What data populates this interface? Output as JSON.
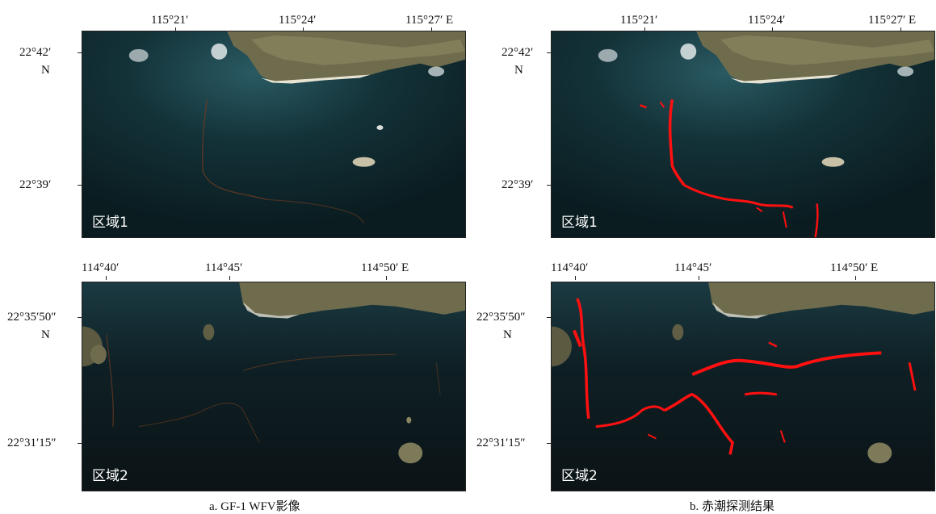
{
  "panel_a": {
    "caption": "a. GF-1 WFV影像",
    "top": {
      "x_ticks": [
        "115°21′",
        "115°24′",
        "115°27′ E"
      ],
      "y_ticks": [
        "22°42′",
        "N",
        "22°39′"
      ],
      "region": "区域1"
    },
    "bottom": {
      "x_ticks": [
        "114°40′",
        "114°45′",
        "114°50′ E"
      ],
      "y_ticks": [
        "22°35′50″",
        "N",
        "22°31′15″"
      ],
      "region": "区域2"
    }
  },
  "panel_b": {
    "caption": "b. 赤潮探测结果",
    "top": {
      "x_ticks": [
        "115°21′",
        "115°24′",
        "115°27′ E"
      ],
      "y_ticks": [
        "22°42′",
        "N",
        "22°39′"
      ],
      "region": "区域1"
    },
    "bottom": {
      "x_ticks": [
        "114°40′",
        "114°45′",
        "114°50′ E"
      ],
      "y_ticks": [
        "22°35′50″",
        "N",
        "22°31′15″"
      ],
      "region": "区域2"
    }
  },
  "colors": {
    "sea": "#0d2328",
    "sea_light": "#1c4650",
    "land": "#7d7a5a",
    "beach": "#e8e4d4",
    "bloom_trace": "#6b3a22",
    "bloom_detected": "#ff1010"
  }
}
